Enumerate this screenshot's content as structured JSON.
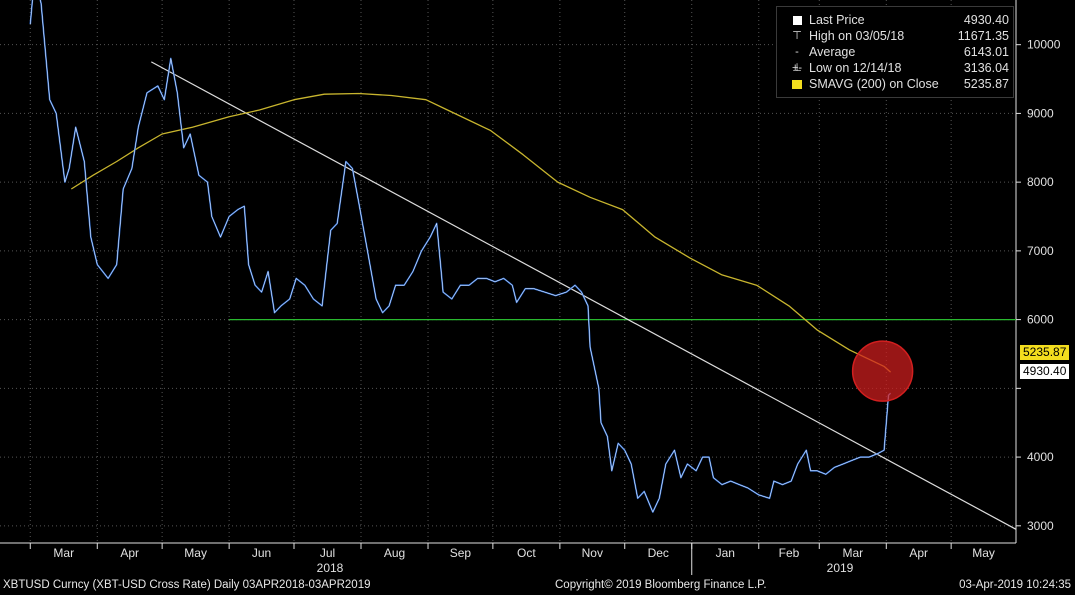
{
  "colors": {
    "background": "#000000",
    "price": "#2f6fd6",
    "price_highlight": "#ffffff",
    "sma": "#c8b52e",
    "support": "#29b92f",
    "trendline": "#dddddd",
    "marker": "#d21f1f",
    "grid": "#555555",
    "axis_text": "#e0e0e0"
  },
  "legend": {
    "rows": [
      {
        "symbol": "square-white",
        "label": "Last Price",
        "value": "4930.40"
      },
      {
        "symbol": "high-tick",
        "label": "High on 03/05/18",
        "value": "11671.35"
      },
      {
        "symbol": "avg-cross",
        "label": "Average",
        "value": "6143.01"
      },
      {
        "symbol": "low-tick",
        "label": "Low on 12/14/18",
        "value": "3136.04"
      },
      {
        "symbol": "square-yellow",
        "label": "SMAVG (200)  on Close",
        "value": "5235.87"
      }
    ]
  },
  "tags": {
    "sma_tag": "5235.87",
    "last_tag": "4930.40"
  },
  "footer": {
    "left": "XBTUSD Curncy (XBT-USD Cross Rate)  Daily 03APR2018-03APR2019",
    "center": "Copyright© 2019 Bloomberg Finance L.P.",
    "right": "03-Apr-2019 10:24:35"
  },
  "chart_data": {
    "type": "line",
    "title": "",
    "xlabel": "",
    "ylabel": "",
    "x_ticks": [
      "Mar",
      "Apr",
      "May",
      "Jun",
      "Jul",
      "Aug",
      "Sep",
      "Oct",
      "Nov",
      "Dec",
      "Jan",
      "Feb",
      "Mar",
      "Apr",
      "May"
    ],
    "year_labels": [
      "2018",
      "2019"
    ],
    "y_ticks": [
      3000,
      4000,
      5000,
      6000,
      7000,
      8000,
      9000,
      10000
    ],
    "y_tick_labels": [
      "3000",
      "4000",
      "",
      "6000",
      "7000",
      "8000",
      "9000",
      "10000"
    ],
    "ylim": [
      2750,
      10650
    ],
    "grid": true,
    "legend_position": "top-right",
    "series": [
      {
        "name": "Last Price",
        "points": [
          [
            "2018-03-01",
            10300
          ],
          [
            "2018-03-03",
            11000
          ],
          [
            "2018-03-06",
            10600
          ],
          [
            "2018-03-10",
            9200
          ],
          [
            "2018-03-13",
            9000
          ],
          [
            "2018-03-17",
            8000
          ],
          [
            "2018-03-19",
            8200
          ],
          [
            "2018-03-22",
            8800
          ],
          [
            "2018-03-26",
            8300
          ],
          [
            "2018-03-29",
            7200
          ],
          [
            "2018-04-01",
            6800
          ],
          [
            "2018-04-06",
            6600
          ],
          [
            "2018-04-10",
            6800
          ],
          [
            "2018-04-13",
            7900
          ],
          [
            "2018-04-17",
            8200
          ],
          [
            "2018-04-20",
            8800
          ],
          [
            "2018-04-24",
            9300
          ],
          [
            "2018-04-29",
            9400
          ],
          [
            "2018-05-02",
            9200
          ],
          [
            "2018-05-05",
            9800
          ],
          [
            "2018-05-08",
            9300
          ],
          [
            "2018-05-11",
            8500
          ],
          [
            "2018-05-14",
            8700
          ],
          [
            "2018-05-18",
            8100
          ],
          [
            "2018-05-22",
            8000
          ],
          [
            "2018-05-24",
            7500
          ],
          [
            "2018-05-28",
            7200
          ],
          [
            "2018-06-01",
            7500
          ],
          [
            "2018-06-05",
            7600
          ],
          [
            "2018-06-08",
            7650
          ],
          [
            "2018-06-10",
            6800
          ],
          [
            "2018-06-13",
            6500
          ],
          [
            "2018-06-16",
            6400
          ],
          [
            "2018-06-19",
            6700
          ],
          [
            "2018-06-22",
            6100
          ],
          [
            "2018-06-25",
            6200
          ],
          [
            "2018-06-29",
            6300
          ],
          [
            "2018-07-02",
            6600
          ],
          [
            "2018-07-06",
            6500
          ],
          [
            "2018-07-10",
            6300
          ],
          [
            "2018-07-14",
            6200
          ],
          [
            "2018-07-18",
            7300
          ],
          [
            "2018-07-21",
            7400
          ],
          [
            "2018-07-25",
            8300
          ],
          [
            "2018-07-28",
            8200
          ],
          [
            "2018-07-31",
            7700
          ],
          [
            "2018-08-04",
            7000
          ],
          [
            "2018-08-08",
            6300
          ],
          [
            "2018-08-11",
            6100
          ],
          [
            "2018-08-14",
            6200
          ],
          [
            "2018-08-17",
            6500
          ],
          [
            "2018-08-21",
            6500
          ],
          [
            "2018-08-25",
            6700
          ],
          [
            "2018-08-29",
            7000
          ],
          [
            "2018-09-02",
            7200
          ],
          [
            "2018-09-05",
            7400
          ],
          [
            "2018-09-08",
            6400
          ],
          [
            "2018-09-12",
            6300
          ],
          [
            "2018-09-16",
            6500
          ],
          [
            "2018-09-20",
            6500
          ],
          [
            "2018-09-24",
            6600
          ],
          [
            "2018-09-28",
            6600
          ],
          [
            "2018-10-02",
            6550
          ],
          [
            "2018-10-06",
            6600
          ],
          [
            "2018-10-10",
            6500
          ],
          [
            "2018-10-12",
            6250
          ],
          [
            "2018-10-16",
            6450
          ],
          [
            "2018-10-20",
            6450
          ],
          [
            "2018-10-25",
            6400
          ],
          [
            "2018-10-30",
            6350
          ],
          [
            "2018-11-04",
            6400
          ],
          [
            "2018-11-08",
            6500
          ],
          [
            "2018-11-11",
            6400
          ],
          [
            "2018-11-14",
            6200
          ],
          [
            "2018-11-15",
            5600
          ],
          [
            "2018-11-19",
            5000
          ],
          [
            "2018-11-20",
            4500
          ],
          [
            "2018-11-23",
            4300
          ],
          [
            "2018-11-25",
            3800
          ],
          [
            "2018-11-28",
            4200
          ],
          [
            "2018-12-01",
            4100
          ],
          [
            "2018-12-04",
            3900
          ],
          [
            "2018-12-07",
            3400
          ],
          [
            "2018-12-10",
            3500
          ],
          [
            "2018-12-14",
            3200
          ],
          [
            "2018-12-17",
            3400
          ],
          [
            "2018-12-20",
            3900
          ],
          [
            "2018-12-24",
            4100
          ],
          [
            "2018-12-27",
            3700
          ],
          [
            "2018-12-30",
            3900
          ],
          [
            "2019-01-03",
            3800
          ],
          [
            "2019-01-06",
            4000
          ],
          [
            "2019-01-09",
            4000
          ],
          [
            "2019-01-11",
            3700
          ],
          [
            "2019-01-15",
            3600
          ],
          [
            "2019-01-19",
            3650
          ],
          [
            "2019-01-23",
            3600
          ],
          [
            "2019-01-27",
            3550
          ],
          [
            "2019-02-01",
            3450
          ],
          [
            "2019-02-06",
            3400
          ],
          [
            "2019-02-08",
            3650
          ],
          [
            "2019-02-12",
            3600
          ],
          [
            "2019-02-16",
            3650
          ],
          [
            "2019-02-19",
            3900
          ],
          [
            "2019-02-23",
            4100
          ],
          [
            "2019-02-25",
            3800
          ],
          [
            "2019-02-28",
            3800
          ],
          [
            "2019-03-04",
            3750
          ],
          [
            "2019-03-08",
            3850
          ],
          [
            "2019-03-12",
            3900
          ],
          [
            "2019-03-16",
            3950
          ],
          [
            "2019-03-20",
            4000
          ],
          [
            "2019-03-24",
            4000
          ],
          [
            "2019-03-28",
            4050
          ],
          [
            "2019-03-31",
            4100
          ],
          [
            "2019-04-02",
            4900
          ],
          [
            "2019-04-03",
            4930
          ]
        ]
      },
      {
        "name": "SMAVG (200)  on Close",
        "points": [
          [
            "2018-03-20",
            7900
          ],
          [
            "2018-03-30",
            8100
          ],
          [
            "2018-04-10",
            8300
          ],
          [
            "2018-04-20",
            8500
          ],
          [
            "2018-05-01",
            8700
          ],
          [
            "2018-05-15",
            8800
          ],
          [
            "2018-06-01",
            8950
          ],
          [
            "2018-06-15",
            9050
          ],
          [
            "2018-07-01",
            9200
          ],
          [
            "2018-07-15",
            9280
          ],
          [
            "2018-07-31",
            9290
          ],
          [
            "2018-08-15",
            9260
          ],
          [
            "2018-08-31",
            9200
          ],
          [
            "2018-09-10",
            9050
          ],
          [
            "2018-09-30",
            8750
          ],
          [
            "2018-10-15",
            8400
          ],
          [
            "2018-10-31",
            8000
          ],
          [
            "2018-11-15",
            7780
          ],
          [
            "2018-11-30",
            7600
          ],
          [
            "2018-12-15",
            7200
          ],
          [
            "2018-12-31",
            6900
          ],
          [
            "2019-01-15",
            6650
          ],
          [
            "2019-01-31",
            6500
          ],
          [
            "2019-02-15",
            6200
          ],
          [
            "2019-02-28",
            5850
          ],
          [
            "2019-03-15",
            5560
          ],
          [
            "2019-03-31",
            5320
          ],
          [
            "2019-04-03",
            5236
          ]
        ]
      },
      {
        "name": "",
        "points": [
          [
            "2018-04-26",
            9750
          ],
          [
            "2019-05-31",
            2950
          ]
        ]
      },
      {
        "name": "",
        "points": [
          [
            "2018-06-01",
            6000
          ],
          [
            "2019-05-31",
            6000
          ]
        ]
      }
    ],
    "annotations": [
      {
        "type": "circle-marker",
        "x": "2019-04-03",
        "y": 5250
      }
    ]
  }
}
